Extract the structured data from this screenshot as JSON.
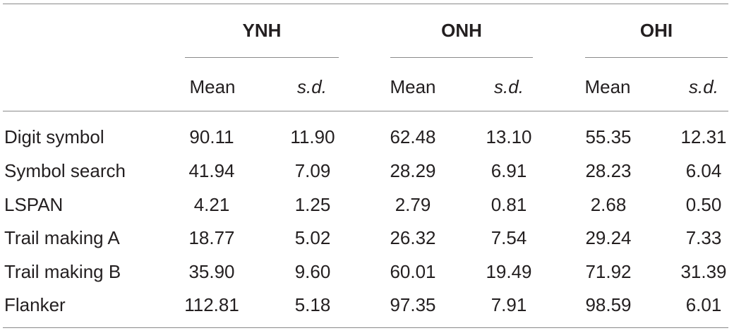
{
  "table": {
    "groups": [
      "YNH",
      "ONH",
      "OHI"
    ],
    "subheaders": {
      "mean": "Mean",
      "sd": "s.d."
    },
    "rows": [
      {
        "label": "Digit symbol",
        "values": [
          "90.11",
          "11.90",
          "62.48",
          "13.10",
          "55.35",
          "12.31"
        ]
      },
      {
        "label": "Symbol search",
        "values": [
          "41.94",
          "7.09",
          "28.29",
          "6.91",
          "28.23",
          "6.04"
        ]
      },
      {
        "label": "LSPAN",
        "values": [
          "4.21",
          "1.25",
          "2.79",
          "0.81",
          "2.68",
          "0.50"
        ]
      },
      {
        "label": "Trail making A",
        "values": [
          "18.77",
          "5.02",
          "26.32",
          "7.54",
          "29.24",
          "7.33"
        ]
      },
      {
        "label": "Trail making B",
        "values": [
          "35.90",
          "9.60",
          "60.01",
          "19.49",
          "71.92",
          "31.39"
        ]
      },
      {
        "label": "Flanker",
        "values": [
          "112.81",
          "5.18",
          "97.35",
          "7.91",
          "98.59",
          "6.01"
        ]
      }
    ]
  }
}
